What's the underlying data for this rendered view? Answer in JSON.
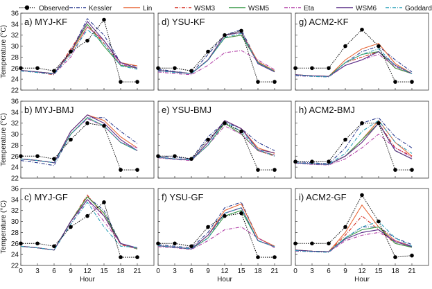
{
  "legend": [
    {
      "name": "Observed",
      "color": "#000000",
      "dash": "dot-marker"
    },
    {
      "name": "Kessler",
      "color": "#2b3b8f",
      "dash": "dashdot"
    },
    {
      "name": "Lin",
      "color": "#e8693a",
      "dash": "solid"
    },
    {
      "name": "WSM3",
      "color": "#d42a1e",
      "dash": "dashdot"
    },
    {
      "name": "WSM5",
      "color": "#3a9a48",
      "dash": "solid"
    },
    {
      "name": "Eta",
      "color": "#b23fa6",
      "dash": "dashdot"
    },
    {
      "name": "WSM6",
      "color": "#5a2e87",
      "dash": "solid"
    },
    {
      "name": "Goddard",
      "color": "#2aa0b8",
      "dash": "dashdot"
    }
  ],
  "axes": {
    "ylabel": "Temperature (°C)",
    "xlabel": "Hour",
    "xticks": [
      "0",
      "3",
      "6",
      "9",
      "12",
      "15",
      "18",
      "21"
    ],
    "yticks": [
      "22",
      "24",
      "26",
      "28",
      "30",
      "32",
      "34",
      "36"
    ]
  },
  "chart_data": [
    {
      "type": "line",
      "title": "a) MYJ-KF",
      "x": [
        0,
        3,
        6,
        9,
        12,
        15,
        18,
        21
      ],
      "ylim": [
        22,
        36
      ],
      "observed": [
        26,
        26,
        25.5,
        29,
        31,
        34.8,
        23.5,
        23.5
      ],
      "series": [
        {
          "name": "Kessler",
          "values": [
            25.5,
            25.2,
            24.8,
            29,
            35,
            32,
            27,
            26.3
          ]
        },
        {
          "name": "Lin",
          "values": [
            25.6,
            25.3,
            25,
            28.8,
            33.5,
            31,
            27,
            26.4
          ]
        },
        {
          "name": "WSM3",
          "values": [
            25.6,
            25.2,
            24.8,
            29.5,
            34,
            30.5,
            26.5,
            26
          ]
        },
        {
          "name": "WSM5",
          "values": [
            25.6,
            25.3,
            25,
            29,
            34,
            30,
            26.5,
            26
          ]
        },
        {
          "name": "Eta",
          "values": [
            25.5,
            25.2,
            24.9,
            28,
            33.5,
            31,
            26.7,
            26
          ]
        },
        {
          "name": "WSM6",
          "values": [
            25.6,
            25.3,
            25,
            29,
            34.5,
            31,
            27,
            26
          ]
        },
        {
          "name": "Goddard",
          "values": [
            25.5,
            25.2,
            24.9,
            28.5,
            33,
            30.5,
            26.4,
            25.8
          ]
        }
      ]
    },
    {
      "type": "line",
      "title": "d) YSU-KF",
      "x": [
        0,
        3,
        6,
        9,
        12,
        15,
        18,
        21
      ],
      "ylim": [
        22,
        36
      ],
      "observed": [
        26,
        26,
        25.5,
        29,
        32,
        32.8,
        23.5,
        23.5
      ],
      "series": [
        {
          "name": "Kessler",
          "values": [
            25.8,
            25.4,
            25,
            28.5,
            32,
            33,
            27,
            25.5
          ]
        },
        {
          "name": "Lin",
          "values": [
            25.6,
            25.3,
            25,
            27.5,
            32,
            32.5,
            27.2,
            25.5
          ]
        },
        {
          "name": "WSM3",
          "values": [
            25.6,
            25.3,
            25,
            27.5,
            31.5,
            32,
            27,
            25.4
          ]
        },
        {
          "name": "WSM5",
          "values": [
            25.6,
            25.3,
            25,
            27.5,
            31.5,
            32,
            27,
            25.4
          ]
        },
        {
          "name": "Eta",
          "values": [
            25.3,
            25,
            24.8,
            26.5,
            28.8,
            29.2,
            27.5,
            25.7
          ]
        },
        {
          "name": "WSM6",
          "values": [
            25.6,
            25.3,
            25,
            27.5,
            32,
            32.5,
            26.8,
            25.3
          ]
        },
        {
          "name": "Goddard",
          "values": [
            25.5,
            25.2,
            25,
            27.4,
            31.6,
            32.3,
            27,
            25.4
          ]
        }
      ]
    },
    {
      "type": "line",
      "title": "g) ACM2-KF",
      "x": [
        0,
        3,
        6,
        9,
        12,
        15,
        18,
        21
      ],
      "ylim": [
        22,
        36
      ],
      "observed": [
        26,
        26,
        26,
        30,
        33,
        30,
        23.5,
        23.5
      ],
      "series": [
        {
          "name": "Kessler",
          "values": [
            24.8,
            24.6,
            24.5,
            27,
            29,
            30,
            27.5,
            25.3
          ]
        },
        {
          "name": "Lin",
          "values": [
            24.8,
            24.6,
            24.5,
            27.5,
            29.5,
            30.5,
            26.8,
            25
          ]
        },
        {
          "name": "WSM3",
          "values": [
            24.8,
            24.6,
            24.5,
            27,
            28,
            29,
            26,
            25
          ]
        },
        {
          "name": "WSM5",
          "values": [
            24.8,
            24.6,
            24.5,
            27,
            28.5,
            29,
            26,
            25
          ]
        },
        {
          "name": "Eta",
          "values": [
            24.6,
            24.5,
            24.4,
            26.5,
            27.5,
            28.5,
            26.3,
            25
          ]
        },
        {
          "name": "WSM6",
          "values": [
            24.8,
            24.6,
            24.5,
            26.5,
            27.5,
            29,
            26.5,
            25
          ]
        },
        {
          "name": "Goddard",
          "values": [
            24.7,
            24.5,
            24.4,
            27,
            28.5,
            29.5,
            26.5,
            25
          ]
        }
      ]
    },
    {
      "type": "line",
      "title": "b) MYJ-BMJ",
      "x": [
        0,
        3,
        6,
        9,
        12,
        15,
        18,
        21
      ],
      "ylim": [
        22,
        36
      ],
      "observed": [
        26,
        26,
        25.5,
        29,
        32,
        31.5,
        23.5,
        23.5
      ],
      "series": [
        {
          "name": "Kessler",
          "values": [
            25.2,
            24.8,
            24.3,
            30,
            33,
            33,
            30.5,
            28.3
          ]
        },
        {
          "name": "Lin",
          "values": [
            25.5,
            25.2,
            24.8,
            30.5,
            33.5,
            32.5,
            29.5,
            27.5
          ]
        },
        {
          "name": "WSM3",
          "values": [
            25.5,
            25.2,
            24.8,
            30,
            33,
            31.5,
            28.5,
            27
          ]
        },
        {
          "name": "WSM5",
          "values": [
            25.5,
            25.2,
            24.8,
            30,
            33,
            31.5,
            28.5,
            27
          ]
        },
        {
          "name": "Eta",
          "values": [
            25.5,
            25.2,
            24.8,
            30,
            32.8,
            31.5,
            28.5,
            27.5
          ]
        },
        {
          "name": "WSM6",
          "values": [
            25.5,
            25.2,
            24.8,
            30.5,
            33.5,
            32,
            29,
            27
          ]
        },
        {
          "name": "Goddard",
          "values": [
            25.5,
            25.2,
            24.8,
            30,
            33,
            31.5,
            28.5,
            27
          ]
        }
      ]
    },
    {
      "type": "line",
      "title": "e) YSU-BMJ",
      "x": [
        0,
        3,
        6,
        9,
        12,
        15,
        18,
        21
      ],
      "ylim": [
        22,
        36
      ],
      "observed": [
        26,
        26,
        25.5,
        29,
        32,
        30.5,
        23.5,
        23.5
      ],
      "series": [
        {
          "name": "Kessler",
          "values": [
            26,
            25.8,
            25.5,
            29.5,
            32.2,
            31,
            28.5,
            27
          ]
        },
        {
          "name": "Lin",
          "values": [
            25.8,
            25.5,
            25.3,
            28.5,
            32.5,
            31,
            27.5,
            26.5
          ]
        },
        {
          "name": "WSM3",
          "values": [
            25.8,
            25.5,
            25.3,
            28,
            32,
            30,
            27,
            26
          ]
        },
        {
          "name": "WSM5",
          "values": [
            25.8,
            25.5,
            25.3,
            28,
            32,
            30,
            27,
            26.2
          ]
        },
        {
          "name": "Eta",
          "values": [
            25.7,
            25.4,
            25.2,
            28,
            31.5,
            30,
            27,
            26.2
          ]
        },
        {
          "name": "WSM6",
          "values": [
            25.8,
            25.5,
            25.3,
            28.5,
            32.5,
            31,
            27.2,
            26.6
          ]
        },
        {
          "name": "Goddard",
          "values": [
            25.8,
            25.5,
            25.3,
            28,
            32.3,
            30.5,
            27.2,
            26
          ]
        }
      ]
    },
    {
      "type": "line",
      "title": "h) ACM2-BMJ",
      "x": [
        0,
        3,
        6,
        9,
        12,
        15,
        18,
        21
      ],
      "ylim": [
        22,
        36
      ],
      "observed": [
        25,
        25,
        25,
        29,
        32,
        32,
        23.5,
        23.5
      ],
      "series": [
        {
          "name": "Kessler",
          "values": [
            25,
            24.8,
            24.6,
            27.5,
            32,
            33,
            29.5,
            27.5
          ]
        },
        {
          "name": "Lin",
          "values": [
            24.8,
            24.6,
            24.5,
            26,
            29,
            32.5,
            28.5,
            26
          ]
        },
        {
          "name": "WSM3",
          "values": [
            24.8,
            24.6,
            24.5,
            26,
            28.5,
            32,
            27.5,
            26
          ]
        },
        {
          "name": "WSM5",
          "values": [
            24.8,
            24.6,
            24.5,
            26,
            29,
            32,
            27,
            25.5
          ]
        },
        {
          "name": "Eta",
          "values": [
            24.7,
            24.5,
            24.4,
            25.5,
            27.5,
            30,
            27.5,
            25.8
          ]
        },
        {
          "name": "WSM6",
          "values": [
            24.8,
            24.6,
            24.5,
            26,
            28.5,
            32,
            27,
            25.5
          ]
        },
        {
          "name": "Goddard",
          "values": [
            24.8,
            24.6,
            24.5,
            26.5,
            30.5,
            32.5,
            28.5,
            26.5
          ]
        }
      ]
    },
    {
      "type": "line",
      "title": "c) MYJ-GF",
      "x": [
        0,
        3,
        6,
        9,
        12,
        15,
        18,
        21
      ],
      "ylim": [
        22,
        36
      ],
      "observed": [
        26,
        26,
        25.5,
        29,
        31,
        33.5,
        23.5,
        23.5
      ],
      "series": [
        {
          "name": "Kessler",
          "values": [
            25.5,
            25.2,
            24.8,
            30,
            34.5,
            32,
            26,
            25
          ]
        },
        {
          "name": "Lin",
          "values": [
            25.5,
            25.2,
            24.8,
            30,
            34.5,
            31.5,
            26,
            25
          ]
        },
        {
          "name": "WSM3",
          "values": [
            25.5,
            25.2,
            24.8,
            30,
            34.8,
            31,
            25.8,
            25
          ]
        },
        {
          "name": "WSM5",
          "values": [
            25.5,
            25.2,
            24.8,
            30,
            34.5,
            31.5,
            26,
            25
          ]
        },
        {
          "name": "Eta",
          "values": [
            25.5,
            25.2,
            24.8,
            29.5,
            34,
            30,
            26,
            25
          ]
        },
        {
          "name": "WSM6",
          "values": [
            25.5,
            25.2,
            24.8,
            30,
            34,
            31,
            26,
            25.2
          ]
        },
        {
          "name": "Goddard",
          "values": [
            25.5,
            25.2,
            24.8,
            29.5,
            33.5,
            29,
            25.5,
            25.3
          ]
        }
      ]
    },
    {
      "type": "line",
      "title": "f) YSU-GF",
      "x": [
        0,
        3,
        6,
        9,
        12,
        15,
        18,
        21
      ],
      "ylim": [
        22,
        36
      ],
      "observed": [
        26,
        26,
        25.5,
        29,
        31,
        31.5,
        23.5,
        23.5
      ],
      "series": [
        {
          "name": "Kessler",
          "values": [
            25.8,
            25.5,
            25.2,
            28,
            32.5,
            33.5,
            27,
            25.5
          ]
        },
        {
          "name": "Lin",
          "values": [
            25.6,
            25.3,
            25,
            27.5,
            32,
            33.2,
            27,
            25.5
          ]
        },
        {
          "name": "WSM3",
          "values": [
            25.6,
            25.3,
            25,
            27,
            31.5,
            32.5,
            26.5,
            25.4
          ]
        },
        {
          "name": "WSM5",
          "values": [
            25.6,
            25.3,
            25,
            27,
            31,
            32,
            26.5,
            25.4
          ]
        },
        {
          "name": "Eta",
          "values": [
            25.4,
            25.2,
            24.9,
            26.5,
            28.5,
            29,
            27,
            25.2
          ]
        },
        {
          "name": "WSM6",
          "values": [
            25.6,
            25.3,
            25,
            27.5,
            31.5,
            32.5,
            26.5,
            25.4
          ]
        },
        {
          "name": "Goddard",
          "values": [
            25.6,
            25.3,
            25,
            27,
            31.5,
            32.5,
            26.5,
            25.4
          ]
        }
      ]
    },
    {
      "type": "line",
      "title": "i) ACM2-GF",
      "x": [
        0,
        3,
        6,
        9,
        12,
        15,
        18,
        21
      ],
      "ylim": [
        22,
        36
      ],
      "observed": [
        26,
        26,
        26,
        29,
        34.8,
        30,
        23.5,
        23.8
      ],
      "series": [
        {
          "name": "Kessler",
          "values": [
            24.8,
            24.6,
            24.5,
            27,
            29,
            29,
            27,
            25.8
          ]
        },
        {
          "name": "Lin",
          "values": [
            24.8,
            24.6,
            24.5,
            28,
            33,
            29,
            26.5,
            25.5
          ]
        },
        {
          "name": "WSM3",
          "values": [
            24.8,
            24.6,
            24.5,
            27.5,
            31,
            28.5,
            26,
            25.3
          ]
        },
        {
          "name": "WSM5",
          "values": [
            24.8,
            24.6,
            24.5,
            27,
            28.5,
            29,
            26,
            25.3
          ]
        },
        {
          "name": "Eta",
          "values": [
            24.6,
            24.5,
            24.4,
            26.5,
            27.5,
            28,
            26.5,
            25.5
          ]
        },
        {
          "name": "WSM6",
          "values": [
            24.8,
            24.6,
            24.5,
            26.8,
            28,
            28.5,
            26.3,
            25.4
          ]
        },
        {
          "name": "Goddard",
          "values": [
            24.7,
            24.5,
            24.4,
            27,
            29,
            30,
            27,
            25.5
          ]
        }
      ]
    }
  ]
}
